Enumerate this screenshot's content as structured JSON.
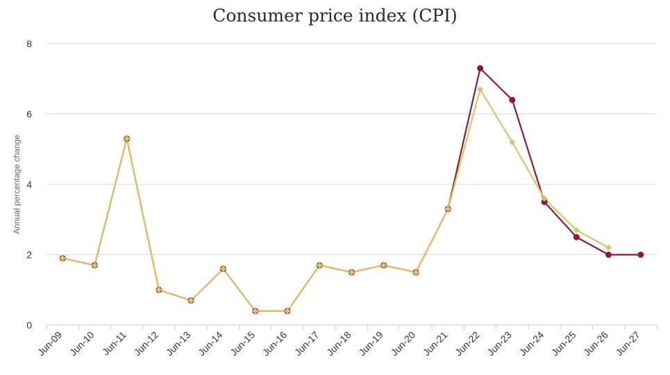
{
  "chart_data": {
    "type": "line",
    "title": "Consumer price index (CPI)",
    "ylabel": "Annual percentage change",
    "xlabel": "",
    "ylim": [
      0,
      8
    ],
    "yticks": [
      0,
      2,
      4,
      6,
      8
    ],
    "grid": true,
    "categories": [
      "Jun-09",
      "Jun-10",
      "Jun-11",
      "Jun-12",
      "Jun-13",
      "Jun-14",
      "Jun-15",
      "Jun-16",
      "Jun-17",
      "Jun-18",
      "Jun-19",
      "Jun-20",
      "Jun-21",
      "Jun-22",
      "Jun-23",
      "Jun-24",
      "Jun-25",
      "Jun-26",
      "Jun-27"
    ],
    "series": [
      {
        "color": "#8c1a3c",
        "marker": "circle",
        "values": [
          1.9,
          1.7,
          5.3,
          1.0,
          0.7,
          1.6,
          0.4,
          0.4,
          1.7,
          1.5,
          1.7,
          1.5,
          3.3,
          7.3,
          6.4,
          3.5,
          2.5,
          2.0,
          2.0
        ]
      },
      {
        "color": "#d9c46a",
        "marker": "diamond",
        "values": [
          1.9,
          1.7,
          5.3,
          1.0,
          0.7,
          1.6,
          0.4,
          0.4,
          1.7,
          1.5,
          1.7,
          1.5,
          3.3,
          6.7,
          5.2,
          3.6,
          2.7,
          2.2,
          null
        ]
      }
    ]
  }
}
